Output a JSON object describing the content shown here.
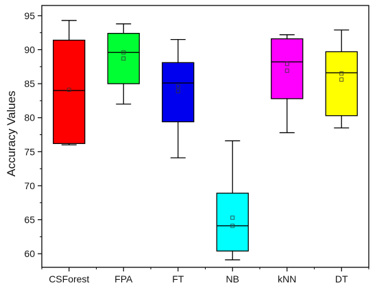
{
  "chart_data": {
    "type": "box",
    "title": "",
    "xlabel": "",
    "ylabel": "Accuracy Values",
    "ylim": [
      58,
      96.5
    ],
    "yticks": [
      60,
      65,
      70,
      75,
      80,
      85,
      90,
      95
    ],
    "yticks_labels": [
      "60",
      "65",
      "70",
      "75",
      "80",
      "85",
      "90",
      "95"
    ],
    "grid": false,
    "legend": "none",
    "categories": [
      "CSForest",
      "FPA",
      "FT",
      "NB",
      "kNN",
      "DT"
    ],
    "boxes": [
      {
        "category": "CSForest",
        "min": 76.0,
        "q1": 76.2,
        "median": 84.0,
        "q3": 91.4,
        "max": 94.3,
        "means": [
          84.1
        ],
        "color": "#ff0000"
      },
      {
        "category": "FPA",
        "min": 82.0,
        "q1": 85.0,
        "median": 89.6,
        "q3": 92.4,
        "max": 93.8,
        "means": [
          89.6,
          88.7
        ],
        "color": "#00ff33"
      },
      {
        "category": "FT",
        "min": 74.1,
        "q1": 79.4,
        "median": 85.1,
        "q3": 88.1,
        "max": 91.5,
        "means": [
          84.6,
          83.9
        ],
        "color": "#0000ee"
      },
      {
        "category": "NB",
        "min": 59.1,
        "q1": 60.4,
        "median": 64.1,
        "q3": 68.9,
        "max": 76.6,
        "means": [
          65.3,
          64.1
        ],
        "color": "#00ffff"
      },
      {
        "category": "kNN",
        "min": 77.8,
        "q1": 82.8,
        "median": 88.2,
        "q3": 91.6,
        "max": 92.2,
        "means": [
          87.9,
          86.9
        ],
        "color": "#ff00ff"
      },
      {
        "category": "DT",
        "min": 78.5,
        "q1": 80.3,
        "median": 86.6,
        "q3": 89.7,
        "max": 92.9,
        "means": [
          86.5,
          85.6
        ],
        "color": "#ffff00"
      }
    ]
  }
}
